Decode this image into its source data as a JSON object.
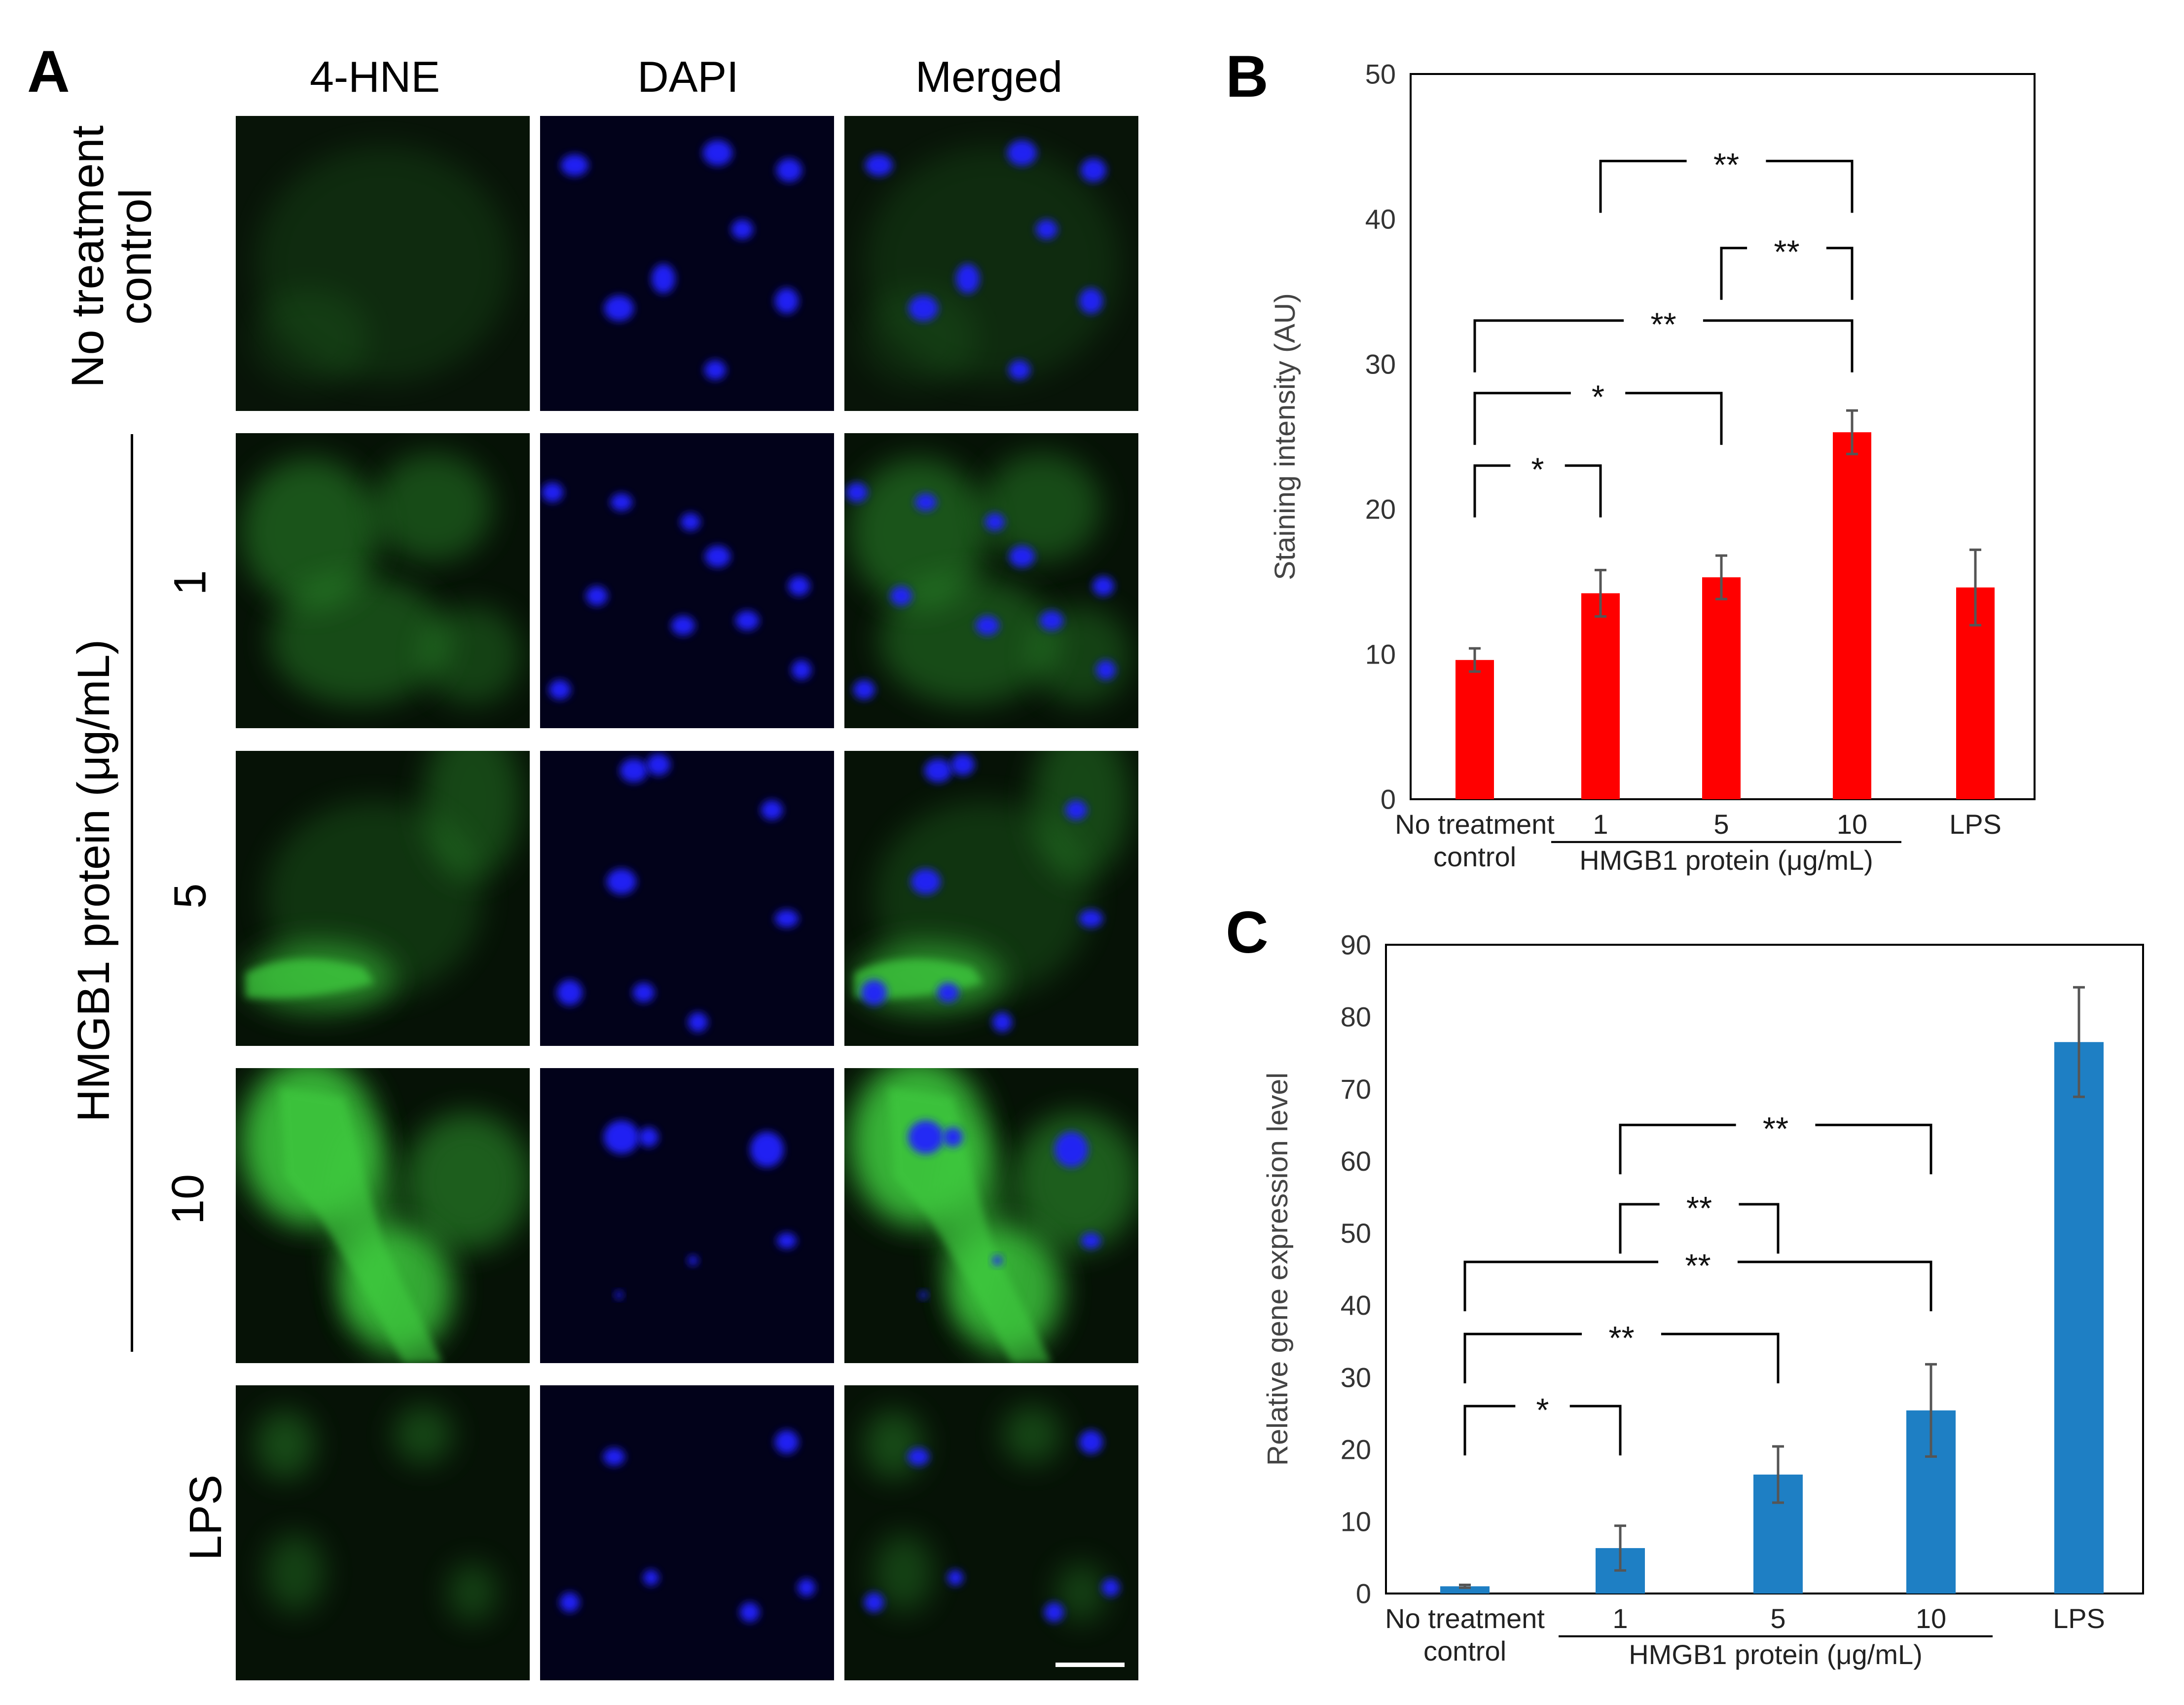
{
  "panels": {
    "A": {
      "letter": "A",
      "columns": [
        "4-HNE",
        "DAPI",
        "Merged"
      ],
      "rows": [
        {
          "label": "No treatment\ncontrol"
        },
        {
          "label": "1"
        },
        {
          "label": "5"
        },
        {
          "label": "10"
        },
        {
          "label": "LPS"
        }
      ],
      "group_label": "HMGB1 protein (μg/mL)"
    },
    "B": {
      "letter": "B"
    },
    "C": {
      "letter": "C"
    }
  },
  "colors": {
    "panel_b_bar": "#ff0000",
    "panel_c_bar": "#1e7fc4",
    "errorbar": "#555555",
    "green_stain": "#3fcf3f",
    "blue_stain": "#2222ff"
  },
  "chart_data": [
    {
      "panel": "B",
      "type": "bar",
      "categories": [
        "No treatment\ncontrol",
        "1",
        "5",
        "10",
        "LPS"
      ],
      "values": [
        9.6,
        14.2,
        15.3,
        25.3,
        14.6
      ],
      "errors": [
        0.8,
        1.6,
        1.5,
        1.5,
        2.6
      ],
      "ylabel": "Staining intensity (AU)",
      "ylim": [
        0,
        50
      ],
      "yticks": [
        0,
        10,
        20,
        30,
        40,
        50
      ],
      "group_label": "HMGB1 protein (μg/mL)",
      "group_span": [
        1,
        3
      ],
      "significance": [
        {
          "from": 0,
          "to": 1,
          "label": "*",
          "y": 23
        },
        {
          "from": 0,
          "to": 2,
          "label": "*",
          "y": 28
        },
        {
          "from": 0,
          "to": 3,
          "label": "**",
          "y": 33
        },
        {
          "from": 2,
          "to": 3,
          "label": "**",
          "y": 38
        },
        {
          "from": 1,
          "to": 3,
          "label": "**",
          "y": 44
        }
      ]
    },
    {
      "panel": "C",
      "type": "bar",
      "categories": [
        "No treatment\ncontrol",
        "1",
        "5",
        "10",
        "LPS"
      ],
      "values": [
        1.0,
        6.3,
        16.5,
        25.4,
        76.5
      ],
      "errors": [
        0.2,
        3.1,
        3.9,
        6.4,
        7.6
      ],
      "ylabel": "Relative gene expression level",
      "ylim": [
        0,
        90
      ],
      "yticks": [
        0,
        10,
        20,
        30,
        40,
        50,
        60,
        70,
        80,
        90
      ],
      "group_label": "HMGB1 protein (μg/mL)",
      "group_span": [
        1,
        3
      ],
      "significance": [
        {
          "from": 0,
          "to": 1,
          "label": "*",
          "y": 26
        },
        {
          "from": 0,
          "to": 2,
          "label": "**",
          "y": 36
        },
        {
          "from": 0,
          "to": 3,
          "label": "**",
          "y": 46
        },
        {
          "from": 1,
          "to": 2,
          "label": "**",
          "y": 54
        },
        {
          "from": 1,
          "to": 3,
          "label": "**",
          "y": 65
        }
      ]
    }
  ]
}
